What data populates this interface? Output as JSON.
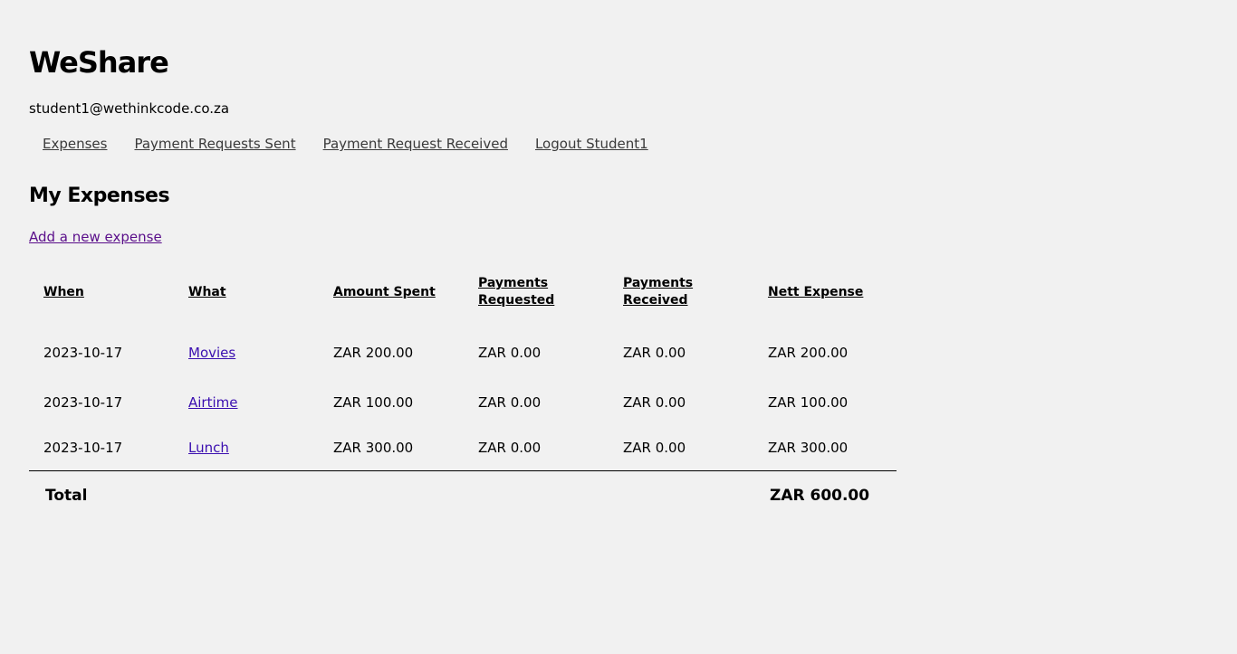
{
  "app": {
    "title": "WeShare",
    "user_email": "student1@wethinkcode.co.za"
  },
  "nav": {
    "items": [
      {
        "label": "Expenses"
      },
      {
        "label": "Payment Requests Sent"
      },
      {
        "label": "Payment Request Received"
      },
      {
        "label": "Logout Student1"
      }
    ]
  },
  "main": {
    "title": "My Expenses",
    "add_link": "Add a new expense"
  },
  "table": {
    "headers": [
      "When",
      "What",
      "Amount Spent",
      "Payments Requested",
      "Payments Received",
      "Nett Expense"
    ],
    "rows": [
      {
        "when": "2023-10-17",
        "what": "Movies",
        "amount": "ZAR 200.00",
        "requested": "ZAR 0.00",
        "received": "ZAR 0.00",
        "nett": "ZAR 200.00"
      },
      {
        "when": "2023-10-17",
        "what": "Airtime",
        "amount": "ZAR 100.00",
        "requested": "ZAR 0.00",
        "received": "ZAR 0.00",
        "nett": "ZAR 100.00"
      },
      {
        "when": "2023-10-17",
        "what": "Lunch",
        "amount": "ZAR 300.00",
        "requested": "ZAR 0.00",
        "received": "ZAR 0.00",
        "nett": "ZAR 300.00"
      }
    ],
    "total_label": "Total",
    "total_value": "ZAR 600.00"
  },
  "colors": {
    "background": "#f1f1f1",
    "nav_link": "#3a3a3a",
    "visited_link": "#5a0e8a",
    "row_link": "#3b0fb0"
  }
}
